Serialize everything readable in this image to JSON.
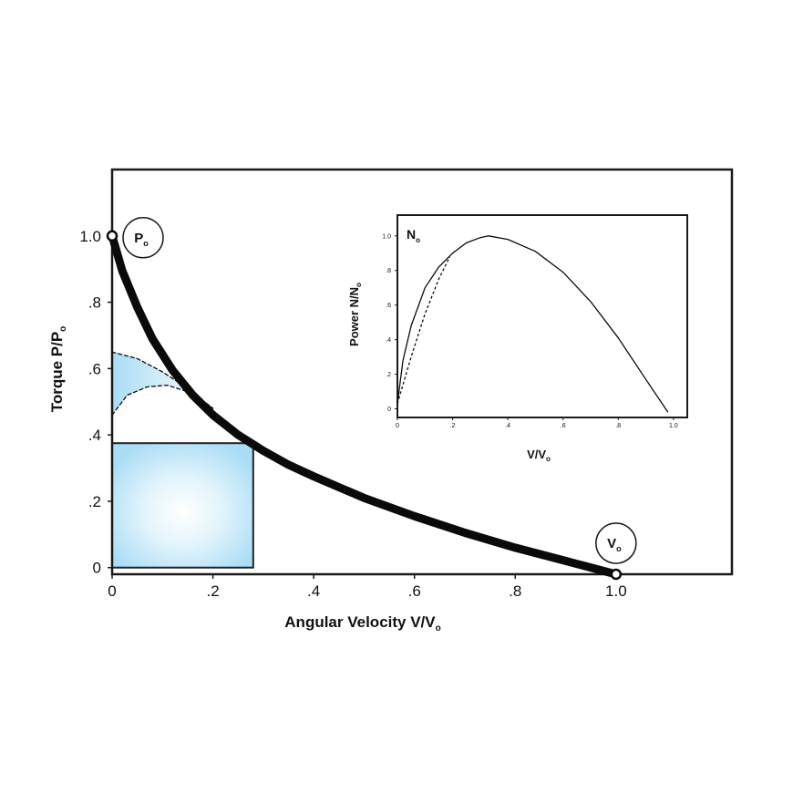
{
  "chart_data": [
    {
      "type": "line",
      "xlabel": "Angular Velocity V/V",
      "xlabel_subscript": "o",
      "ylabel": "Torque P/P",
      "ylabel_subscript": "o",
      "xlim": [
        0,
        1.23
      ],
      "ylim": [
        -0.02,
        1.2
      ],
      "x_ticks": [
        "0",
        ".2",
        ".4",
        ".6",
        ".8",
        "1.0"
      ],
      "y_ticks": [
        "0",
        ".2",
        ".4",
        ".6",
        ".8",
        "1.0"
      ],
      "grid": false,
      "series": [
        {
          "role": "torque-velocity-curve",
          "style": "thick-solid",
          "x": [
            0,
            0.02,
            0.05,
            0.08,
            0.12,
            0.16,
            0.2,
            0.25,
            0.3,
            0.35,
            0.4,
            0.5,
            0.6,
            0.7,
            0.8,
            0.9,
            1.0
          ],
          "y": [
            1.0,
            0.895,
            0.785,
            0.69,
            0.595,
            0.52,
            0.46,
            0.4,
            0.352,
            0.31,
            0.275,
            0.21,
            0.155,
            0.105,
            0.06,
            0.02,
            -0.02
          ]
        },
        {
          "role": "upper-dashed-curve",
          "style": "dashed",
          "x": [
            0,
            0.05,
            0.1,
            0.15,
            0.2
          ],
          "y": [
            0.65,
            0.63,
            0.59,
            0.54,
            0.48
          ]
        },
        {
          "role": "lower-dashed-curve",
          "style": "dashed",
          "x": [
            0,
            0.03,
            0.07,
            0.11,
            0.15,
            0.2
          ],
          "y": [
            0.46,
            0.52,
            0.545,
            0.55,
            0.53,
            0.48
          ]
        }
      ],
      "power_rectangle": {
        "x": [
          0,
          0.28
        ],
        "y": [
          0,
          0.375
        ]
      },
      "shaded_fill_color": "#a9dcf5",
      "points": [
        {
          "label": "P",
          "subscript": "o",
          "x": 0,
          "y": 1.0
        },
        {
          "label": "V",
          "subscript": "o",
          "x": 1.0,
          "y": -0.02
        }
      ]
    },
    {
      "type": "line",
      "xlabel": "V/V",
      "xlabel_subscript": "o",
      "ylabel": "Power N/N",
      "ylabel_subscript": "o",
      "xlim": [
        0,
        1.05
      ],
      "ylim": [
        -0.05,
        1.12
      ],
      "x_ticks": [
        "0",
        ".2",
        ".4",
        ".6",
        ".8",
        "1.0"
      ],
      "y_ticks": [
        "0",
        ".2",
        ".4",
        ".6",
        ".8",
        "1.0"
      ],
      "corner_label": "N",
      "corner_label_subscript": "o",
      "series": [
        {
          "role": "power-curve",
          "style": "solid",
          "x": [
            0,
            0.02,
            0.05,
            0.1,
            0.15,
            0.2,
            0.25,
            0.3,
            0.33,
            0.4,
            0.5,
            0.6,
            0.7,
            0.8,
            0.9,
            0.98
          ],
          "y": [
            0.03,
            0.28,
            0.48,
            0.7,
            0.82,
            0.9,
            0.96,
            0.99,
            1.0,
            0.98,
            0.91,
            0.79,
            0.62,
            0.41,
            0.17,
            -0.02
          ]
        },
        {
          "role": "power-dashed-curve",
          "style": "dashed",
          "x": [
            0,
            0.05,
            0.1,
            0.15,
            0.19
          ],
          "y": [
            0.03,
            0.3,
            0.55,
            0.75,
            0.88
          ]
        }
      ]
    }
  ]
}
